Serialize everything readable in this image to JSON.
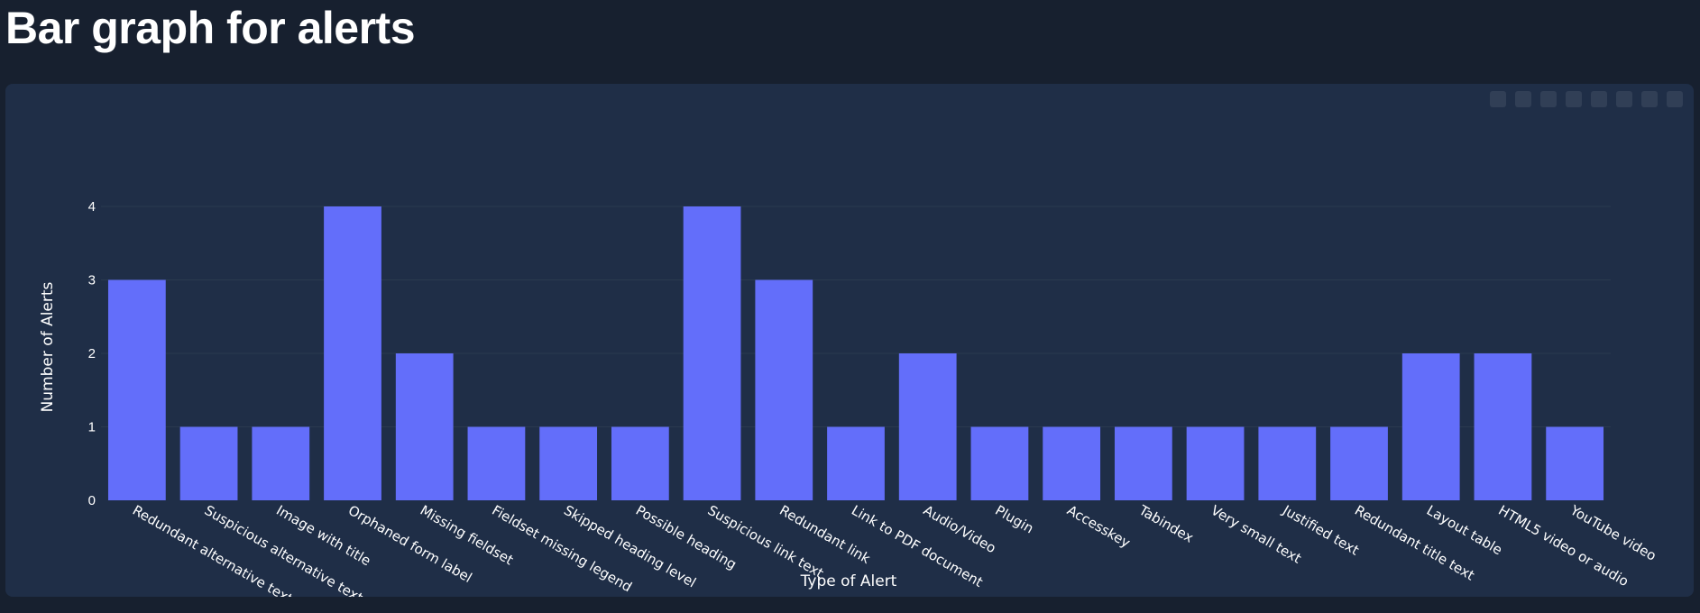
{
  "page": {
    "title": "Bar graph for alerts"
  },
  "colors": {
    "bar": "#636efa",
    "grid": "#2a3a4f",
    "background": "#17202f",
    "card": "#1f2e47"
  },
  "icons": {
    "modebar": [
      "zoom-icon",
      "pan-icon",
      "box-select-icon",
      "lasso-icon",
      "zoom-in-icon",
      "zoom-out-icon",
      "autoscale-icon",
      "reset-axes-icon",
      "plotly-logo-icon"
    ]
  },
  "chart_data": {
    "type": "bar",
    "title": "",
    "xlabel": "Type of Alert",
    "ylabel": "Number of Alerts",
    "ylim": [
      0,
      4
    ],
    "yticks": [
      0,
      1,
      2,
      3,
      4
    ],
    "grid": true,
    "categories": [
      "Redundant alternative text",
      "Suspicious alternative text",
      "Image with title",
      "Orphaned form label",
      "Missing fieldset",
      "Fieldset missing legend",
      "Skipped heading level",
      "Possible heading",
      "Suspicious link text",
      "Redundant link",
      "Link to PDF document",
      "Audio/Video",
      "Plugin",
      "Accesskey",
      "Tabindex",
      "Very small text",
      "Justified text",
      "Redundant title text",
      "Layout table",
      "HTML5 video or audio",
      "YouTube video"
    ],
    "values": [
      3,
      1,
      1,
      4,
      2,
      1,
      1,
      1,
      4,
      3,
      1,
      2,
      1,
      1,
      1,
      1,
      1,
      1,
      2,
      2,
      1
    ]
  }
}
